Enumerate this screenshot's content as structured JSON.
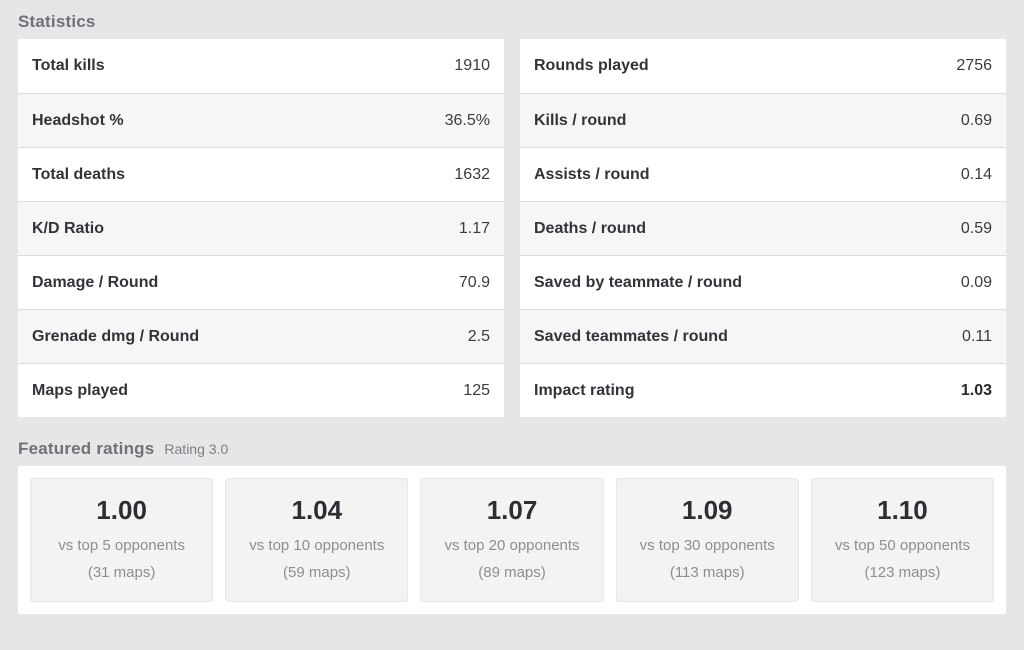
{
  "statistics": {
    "title": "Statistics",
    "left_table": [
      {
        "label": "Total kills",
        "value": "1910"
      },
      {
        "label": "Headshot %",
        "value": "36.5%"
      },
      {
        "label": "Total deaths",
        "value": "1632"
      },
      {
        "label": "K/D Ratio",
        "value": "1.17"
      },
      {
        "label": "Damage / Round",
        "value": "70.9"
      },
      {
        "label": "Grenade dmg / Round",
        "value": "2.5"
      },
      {
        "label": "Maps played",
        "value": "125"
      }
    ],
    "right_table": [
      {
        "label": "Rounds played",
        "value": "2756"
      },
      {
        "label": "Kills / round",
        "value": "0.69"
      },
      {
        "label": "Assists / round",
        "value": "0.14"
      },
      {
        "label": "Deaths / round",
        "value": "0.59"
      },
      {
        "label": "Saved by teammate / round",
        "value": "0.09"
      },
      {
        "label": "Saved teammates / round",
        "value": "0.11"
      },
      {
        "label": "Impact rating",
        "value": "1.03",
        "emphasis": true
      }
    ]
  },
  "featured": {
    "title": "Featured ratings",
    "subtitle": "Rating 3.0",
    "cards": [
      {
        "rating": "1.00",
        "scope": "vs top 5 opponents",
        "maps": "(31 maps)"
      },
      {
        "rating": "1.04",
        "scope": "vs top 10 opponents",
        "maps": "(59 maps)"
      },
      {
        "rating": "1.07",
        "scope": "vs top 20 opponents",
        "maps": "(89 maps)"
      },
      {
        "rating": "1.09",
        "scope": "vs top 30 opponents",
        "maps": "(113 maps)"
      },
      {
        "rating": "1.10",
        "scope": "vs top 50 opponents",
        "maps": "(123 maps)"
      }
    ]
  },
  "colors": {
    "page_background": "#e6e6e8",
    "row_white": "#ffffff",
    "row_alt": "#f6f6f7",
    "row_border": "#dcdcdd",
    "card_background": "#f3f3f4",
    "heading_gray": "#6f7276",
    "muted_text": "#8c8e92",
    "dark_text": "#32343a"
  }
}
